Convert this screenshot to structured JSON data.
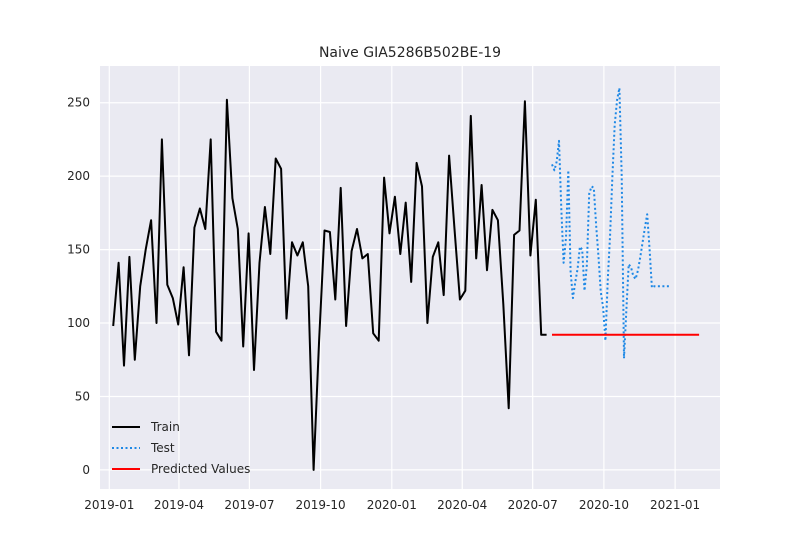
{
  "chart_data": {
    "type": "line",
    "title": "Naive GIA5286B502BE-19",
    "xlabel": "",
    "ylabel": "",
    "x_ticks": [
      "2019-01",
      "2019-04",
      "2019-07",
      "2019-10",
      "2020-01",
      "2020-04",
      "2020-07",
      "2020-10",
      "2021-01"
    ],
    "y_ticks": [
      0,
      50,
      100,
      150,
      200,
      250
    ],
    "xlim": [
      "2018-12-20",
      "2021-02-28"
    ],
    "ylim": [
      -13,
      275
    ],
    "grid": true,
    "legend_position": "lower-left",
    "series": [
      {
        "name": "Train",
        "color": "#000000",
        "style": "solid",
        "x": [
          "2019-01-06",
          "2019-01-13",
          "2019-01-20",
          "2019-01-27",
          "2019-02-03",
          "2019-02-10",
          "2019-02-17",
          "2019-02-24",
          "2019-03-03",
          "2019-03-10",
          "2019-03-17",
          "2019-03-24",
          "2019-03-31",
          "2019-04-07",
          "2019-04-14",
          "2019-04-21",
          "2019-04-28",
          "2019-05-05",
          "2019-05-12",
          "2019-05-19",
          "2019-05-26",
          "2019-06-02",
          "2019-06-09",
          "2019-06-16",
          "2019-06-23",
          "2019-06-30",
          "2019-07-07",
          "2019-07-14",
          "2019-07-21",
          "2019-07-28",
          "2019-08-04",
          "2019-08-11",
          "2019-08-18",
          "2019-08-25",
          "2019-09-01",
          "2019-09-08",
          "2019-09-15",
          "2019-09-22",
          "2019-09-29",
          "2019-10-06",
          "2019-10-13",
          "2019-10-20",
          "2019-10-27",
          "2019-11-03",
          "2019-11-10",
          "2019-11-17",
          "2019-11-24",
          "2019-12-01",
          "2019-12-08",
          "2019-12-15",
          "2019-12-22",
          "2019-12-29",
          "2020-01-05",
          "2020-01-12",
          "2020-01-19",
          "2020-01-26",
          "2020-02-02",
          "2020-02-09",
          "2020-02-16",
          "2020-02-23",
          "2020-03-01",
          "2020-03-08",
          "2020-03-15",
          "2020-03-22",
          "2020-03-29",
          "2020-04-05",
          "2020-04-12",
          "2020-04-19",
          "2020-04-26",
          "2020-05-03",
          "2020-05-10",
          "2020-05-17",
          "2020-05-24",
          "2020-05-31",
          "2020-06-07",
          "2020-06-14",
          "2020-06-21",
          "2020-06-28",
          "2020-07-05",
          "2020-07-12",
          "2020-07-19"
        ],
        "values": [
          98,
          141,
          71,
          145,
          75,
          125,
          150,
          170,
          100,
          225,
          126,
          117,
          99,
          138,
          78,
          165,
          178,
          164,
          225,
          94,
          88,
          252,
          185,
          164,
          84,
          161,
          68,
          141,
          179,
          147,
          212,
          205,
          103,
          155,
          146,
          155,
          125,
          0,
          88,
          163,
          162,
          116,
          192,
          98,
          149,
          164,
          144,
          147,
          93,
          88,
          199,
          161,
          186,
          147,
          182,
          128,
          209,
          193,
          100,
          145,
          155,
          119,
          214,
          164,
          116,
          122,
          241,
          144,
          194,
          136,
          177,
          170,
          113,
          42,
          160,
          163,
          251,
          146,
          184,
          92,
          92
        ]
      },
      {
        "name": "Test",
        "color": "#1e88e5",
        "style": "dotted",
        "x": [
          "2020-07-26",
          "2020-07-29",
          "2020-08-01",
          "2020-08-04",
          "2020-08-07",
          "2020-08-10",
          "2020-08-13",
          "2020-08-16",
          "2020-08-19",
          "2020-08-22",
          "2020-08-25",
          "2020-08-28",
          "2020-08-31",
          "2020-09-03",
          "2020-09-06",
          "2020-09-09",
          "2020-09-12",
          "2020-09-15",
          "2020-09-18",
          "2020-09-21",
          "2020-09-24",
          "2020-09-27",
          "2020-09-30",
          "2020-10-03",
          "2020-10-06",
          "2020-10-09",
          "2020-10-12",
          "2020-10-15",
          "2020-10-18",
          "2020-10-21",
          "2020-10-24",
          "2020-10-27",
          "2020-10-30",
          "2020-11-02",
          "2020-11-05",
          "2020-11-08",
          "2020-11-11",
          "2020-11-14",
          "2020-11-17",
          "2020-11-20",
          "2020-11-23",
          "2020-11-26",
          "2020-11-29",
          "2020-12-02",
          "2020-12-05",
          "2020-12-08",
          "2020-12-11",
          "2020-12-14",
          "2020-12-17",
          "2020-12-20",
          "2020-12-23",
          "2020-12-26"
        ],
        "values": [
          208,
          204,
          210,
          224,
          178,
          141,
          158,
          204,
          135,
          117,
          128,
          137,
          152,
          150,
          122,
          140,
          188,
          193,
          192,
          166,
          145,
          121,
          111,
          88,
          130,
          160,
          200,
          235,
          252,
          260,
          200,
          76,
          108,
          140,
          138,
          132,
          130,
          136,
          145,
          155,
          165,
          174,
          150,
          124,
          125,
          125,
          125,
          125,
          125,
          125,
          125,
          125
        ]
      },
      {
        "name": "Predicted Values",
        "color": "#ff0000",
        "style": "solid",
        "x": [
          "2020-07-26",
          "2021-02-01"
        ],
        "values": [
          92,
          92
        ]
      }
    ]
  }
}
